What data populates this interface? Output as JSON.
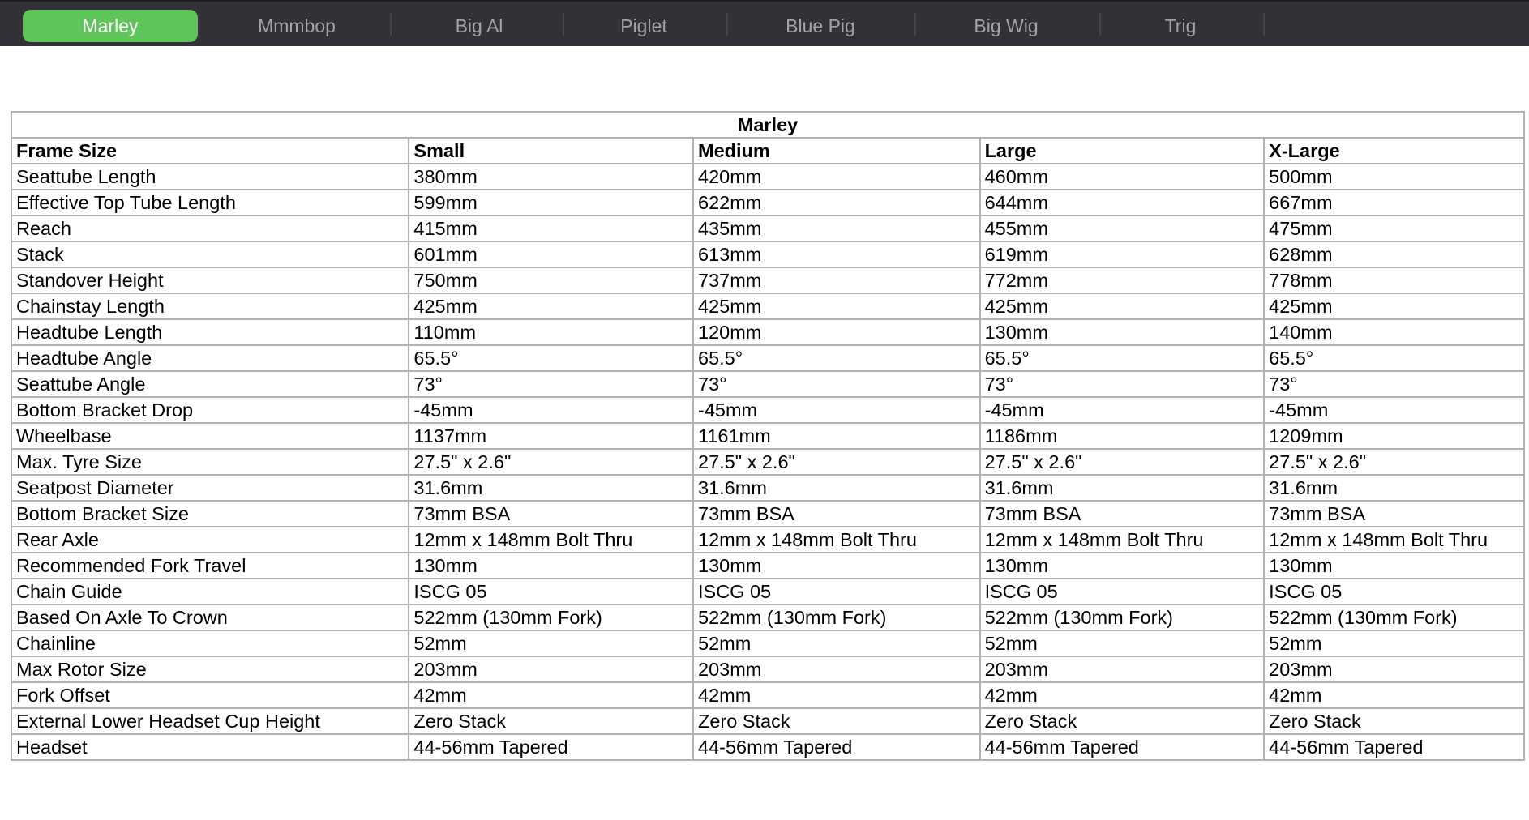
{
  "tabs": [
    {
      "label": "Marley",
      "active": true
    },
    {
      "label": "Mmmbop"
    },
    {
      "label": "Big Al"
    },
    {
      "label": "Piglet"
    },
    {
      "label": "Blue Pig"
    },
    {
      "label": "Big Wig"
    },
    {
      "label": "Trig"
    }
  ],
  "colors": {
    "active_tab": "#5fc45a",
    "tab_bar": "#333138"
  },
  "table": {
    "title": "Marley",
    "headers": [
      "Frame Size",
      "Small",
      "Medium",
      "Large",
      "X-Large"
    ],
    "rows": [
      [
        "Seattube Length",
        "380mm",
        "420mm",
        "460mm",
        "500mm"
      ],
      [
        "Effective Top Tube Length",
        "599mm",
        "622mm",
        "644mm",
        "667mm"
      ],
      [
        "Reach",
        "415mm",
        "435mm",
        "455mm",
        "475mm"
      ],
      [
        "Stack",
        "601mm",
        "613mm",
        "619mm",
        "628mm"
      ],
      [
        "Standover Height",
        "750mm",
        "737mm",
        "772mm",
        "778mm"
      ],
      [
        "Chainstay Length",
        "425mm",
        "425mm",
        "425mm",
        "425mm"
      ],
      [
        "Headtube Length",
        "110mm",
        "120mm",
        "130mm",
        "140mm"
      ],
      [
        "Headtube Angle",
        "65.5°",
        "65.5°",
        "65.5°",
        "65.5°"
      ],
      [
        "Seattube Angle",
        "73°",
        "73°",
        "73°",
        "73°"
      ],
      [
        "Bottom Bracket Drop",
        "-45mm",
        "-45mm",
        "-45mm",
        "-45mm"
      ],
      [
        "Wheelbase",
        "1137mm",
        "1161mm",
        "1186mm",
        "1209mm"
      ],
      [
        "Max. Tyre Size",
        "27.5\" x 2.6\"",
        "27.5\" x 2.6\"",
        "27.5\" x 2.6\"",
        "27.5\" x 2.6\""
      ],
      [
        "Seatpost Diameter",
        "31.6mm",
        "31.6mm",
        "31.6mm",
        "31.6mm"
      ],
      [
        "Bottom Bracket Size",
        "73mm BSA",
        "73mm BSA",
        "73mm BSA",
        "73mm BSA"
      ],
      [
        "Rear Axle",
        "12mm x 148mm Bolt Thru",
        "12mm x 148mm Bolt Thru",
        "12mm x 148mm Bolt Thru",
        "12mm x 148mm Bolt Thru"
      ],
      [
        "Recommended Fork Travel",
        "130mm",
        "130mm",
        "130mm",
        "130mm"
      ],
      [
        "Chain Guide",
        "ISCG 05",
        "ISCG 05",
        "ISCG 05",
        "ISCG 05"
      ],
      [
        "Based On Axle To Crown",
        "522mm (130mm Fork)",
        "522mm (130mm Fork)",
        "522mm (130mm Fork)",
        "522mm (130mm Fork)"
      ],
      [
        "Chainline",
        "52mm",
        "52mm",
        "52mm",
        "52mm"
      ],
      [
        "Max Rotor Size",
        "203mm",
        "203mm",
        "203mm",
        "203mm"
      ],
      [
        "Fork Offset",
        "42mm",
        "42mm",
        "42mm",
        "42mm"
      ],
      [
        "External Lower Headset Cup Height",
        "Zero Stack",
        "Zero Stack",
        "Zero Stack",
        "Zero Stack"
      ],
      [
        "Headset",
        "44-56mm Tapered",
        "44-56mm Tapered",
        "44-56mm Tapered",
        "44-56mm Tapered"
      ]
    ]
  }
}
